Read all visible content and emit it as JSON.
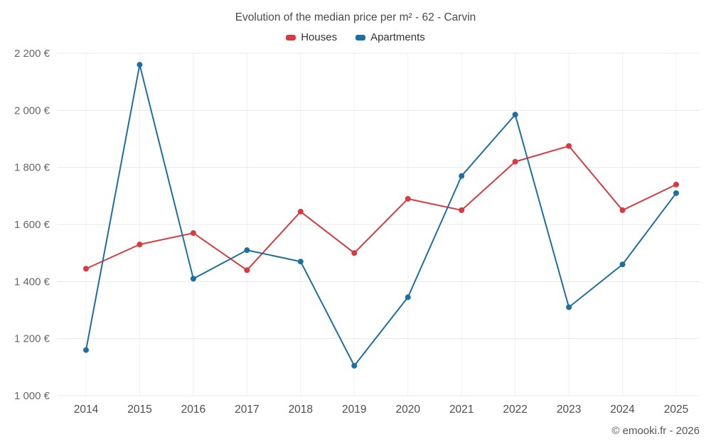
{
  "title": "Evolution of the median price per m² - 62 - Carvin",
  "footer": "© emooki.fr - 2026",
  "chart_data": {
    "type": "line",
    "title": "Evolution of the median price per m² - 62 - Carvin",
    "x_labels": [
      "2014",
      "2015",
      "2016",
      "2017",
      "2018",
      "2019",
      "2020",
      "2021",
      "2022",
      "2023",
      "2024",
      "2025"
    ],
    "y_tick_values": [
      1000,
      1200,
      1400,
      1600,
      1800,
      2000,
      2200
    ],
    "y_tick_labels": [
      "1 000 €",
      "1 200 €",
      "1 400 €",
      "1 600 €",
      "1 800 €",
      "2 000 €",
      "2 200 €"
    ],
    "ylim": [
      1000,
      2200
    ],
    "grid": true,
    "legend_position": "top",
    "series": [
      {
        "name": "Houses",
        "color": "#d73a3f",
        "values": [
          1445,
          1530,
          1570,
          1440,
          1645,
          1500,
          1690,
          1650,
          1820,
          1875,
          1650,
          1740
        ]
      },
      {
        "name": "Apartments",
        "color": "#1c6f9f",
        "values": [
          1160,
          2160,
          1410,
          1510,
          1470,
          1105,
          1345,
          1770,
          1985,
          1310,
          1460,
          1710
        ]
      }
    ]
  }
}
